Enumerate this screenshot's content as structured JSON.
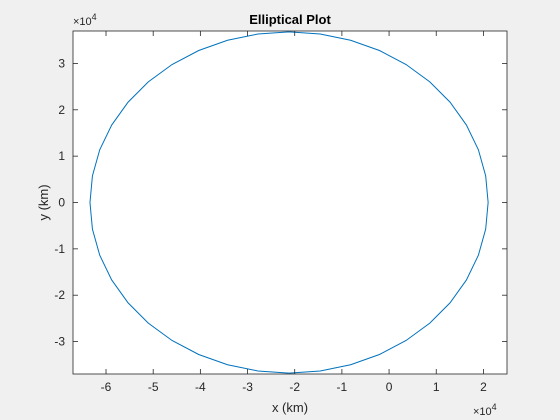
{
  "chart_data": {
    "type": "line",
    "title": "Elliptical Plot",
    "xlabel": "x (km)",
    "ylabel": "y (km)",
    "x_exponent_label": "×10",
    "x_exponent_power": "4",
    "y_exponent_label": "×10",
    "y_exponent_power": "4",
    "xlim": [
      -67000,
      25000
    ],
    "ylim": [
      -37000,
      37000
    ],
    "x_ticks": [
      -60000,
      -50000,
      -40000,
      -30000,
      -20000,
      -10000,
      0,
      10000,
      20000
    ],
    "x_tick_labels": [
      "-6",
      "-5",
      "-4",
      "-3",
      "-2",
      "-1",
      "0",
      "1",
      "2"
    ],
    "y_ticks": [
      -30000,
      -20000,
      -10000,
      0,
      10000,
      20000,
      30000
    ],
    "y_tick_labels": [
      "-3",
      "-2",
      "-1",
      "0",
      "1",
      "2",
      "3"
    ],
    "grid": false,
    "series": [
      {
        "color": "#0072bd",
        "shape": "ellipse",
        "center_x": -21200,
        "center_y": 0,
        "semi_axis_x": 42200,
        "semi_axis_y": 36800,
        "n_points": 40
      }
    ]
  }
}
